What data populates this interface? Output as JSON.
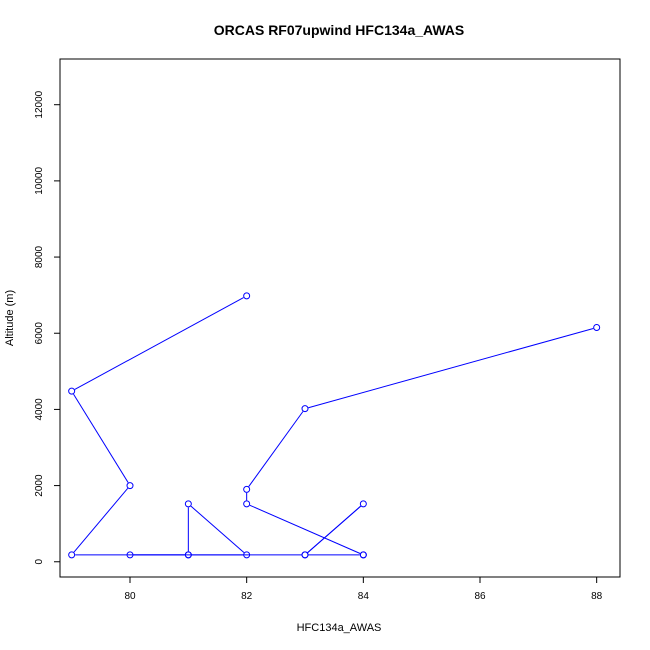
{
  "chart_data": {
    "type": "line",
    "title": "ORCAS RF07upwind HFC134a_AWAS",
    "xlabel": "HFC134a_AWAS",
    "ylabel": "Altitude (m)",
    "xlim": [
      78.8,
      88.4
    ],
    "ylim": [
      -400,
      13200
    ],
    "xticks": [
      80,
      82,
      84,
      86,
      88
    ],
    "yticks": [
      0,
      2000,
      4000,
      6000,
      8000,
      10000,
      12000
    ],
    "grid": false,
    "legend": "none",
    "series": [
      {
        "x": [
          82,
          79,
          80,
          79,
          81,
          81,
          82,
          80,
          81,
          83,
          84,
          83,
          84,
          84,
          82,
          82,
          83,
          88
        ],
        "y": [
          6980,
          4480,
          2000,
          180,
          180,
          1520,
          180,
          180,
          180,
          180,
          1520,
          180,
          180,
          180,
          1520,
          1900,
          4020,
          6150
        ]
      }
    ],
    "colors": {
      "series": "#0000ff",
      "frame": "#000000"
    }
  }
}
